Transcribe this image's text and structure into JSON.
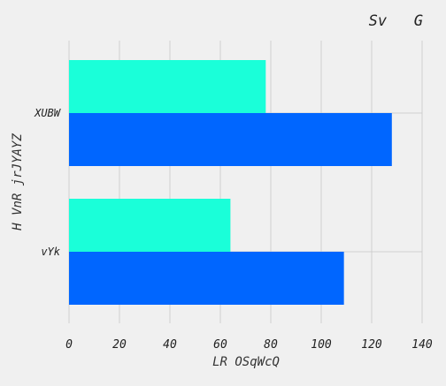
{
  "chart_data": {
    "type": "bar",
    "orientation": "horizontal",
    "title": "Sv   G",
    "xlabel": "LR OSqWcQ",
    "ylabel": "H VnR jrJYAYZ",
    "categories": [
      "XUBW",
      "vYk"
    ],
    "series": [
      {
        "values": [
          78,
          64
        ],
        "color": "#1affd9"
      },
      {
        "values": [
          128,
          109
        ],
        "color": "#0066ff"
      }
    ],
    "xlim": [
      0,
      140
    ],
    "xticks": [
      0,
      20,
      40,
      60,
      80,
      100,
      120,
      140
    ],
    "grid": true
  }
}
